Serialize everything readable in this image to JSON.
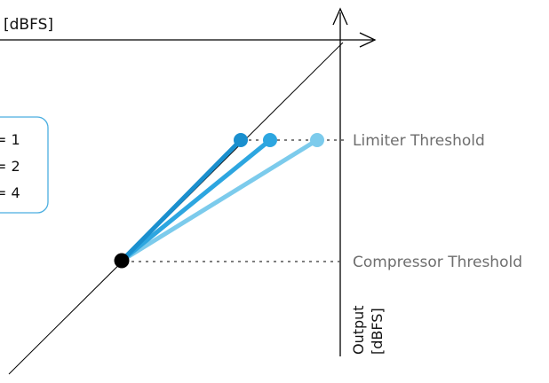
{
  "axes": {
    "input_unit": "[dBFS]",
    "output_title": "Output",
    "output_unit": "[dBFS]"
  },
  "legend": {
    "items": [
      {
        "label": "= 1",
        "color": "#1a8fce"
      },
      {
        "label": "= 2",
        "color": "#2da6e0"
      },
      {
        "label": "= 4",
        "color": "#7ccbec"
      }
    ]
  },
  "annotations": {
    "limiter_threshold": "Limiter Threshold",
    "compressor_threshold": "Compressor Threshold"
  },
  "colors": {
    "axis": "#000000",
    "dotted_guide": "#555555",
    "annotation_text": "#6e6e6e",
    "legend_border": "#4aaee0",
    "knee_point": "#000000",
    "ratio_1": "#1a8fce",
    "ratio_2": "#2da6e0",
    "ratio_4": "#7ccbec"
  }
}
